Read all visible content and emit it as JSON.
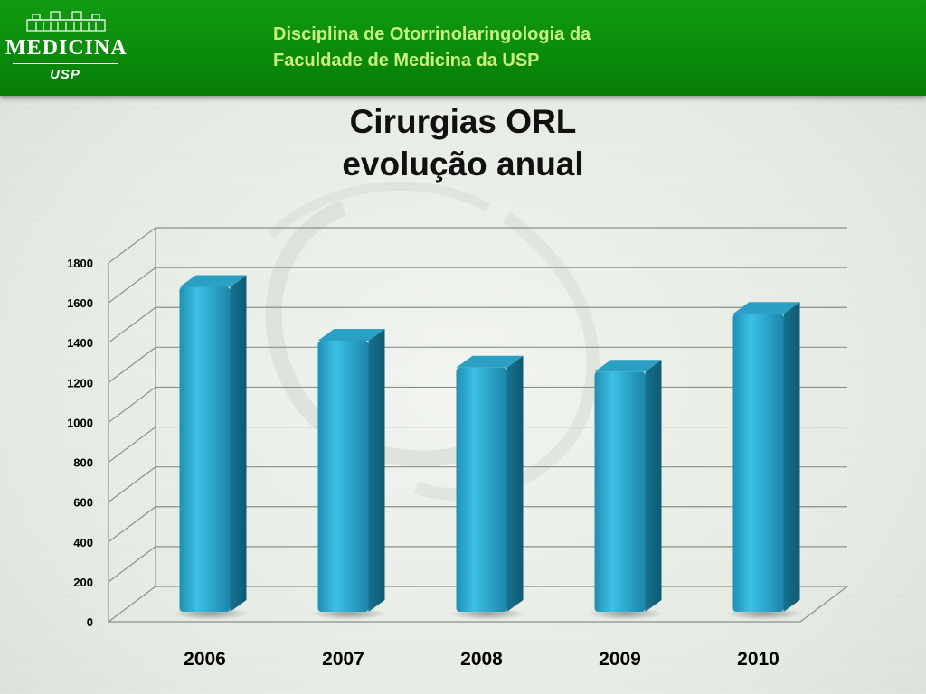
{
  "header": {
    "logo": {
      "word": "MEDICINA",
      "sub": "USP"
    },
    "line1": "Disciplina de Otorrinolaringologia da",
    "line2": "Faculdade de Medicina da USP"
  },
  "chart_data": {
    "type": "bar",
    "title": [
      "Cirurgias ORL",
      "evolução anual"
    ],
    "categories": [
      "2006",
      "2007",
      "2008",
      "2009",
      "2010"
    ],
    "values": [
      1680,
      1410,
      1275,
      1255,
      1545
    ],
    "ylim": [
      0,
      1800
    ],
    "yticks": [
      0,
      200,
      400,
      600,
      800,
      1000,
      1200,
      1400,
      1600,
      1800
    ],
    "xlabel": "",
    "ylabel": "",
    "grid": true,
    "legend": "none",
    "bar_color": "#2aa9cf"
  }
}
